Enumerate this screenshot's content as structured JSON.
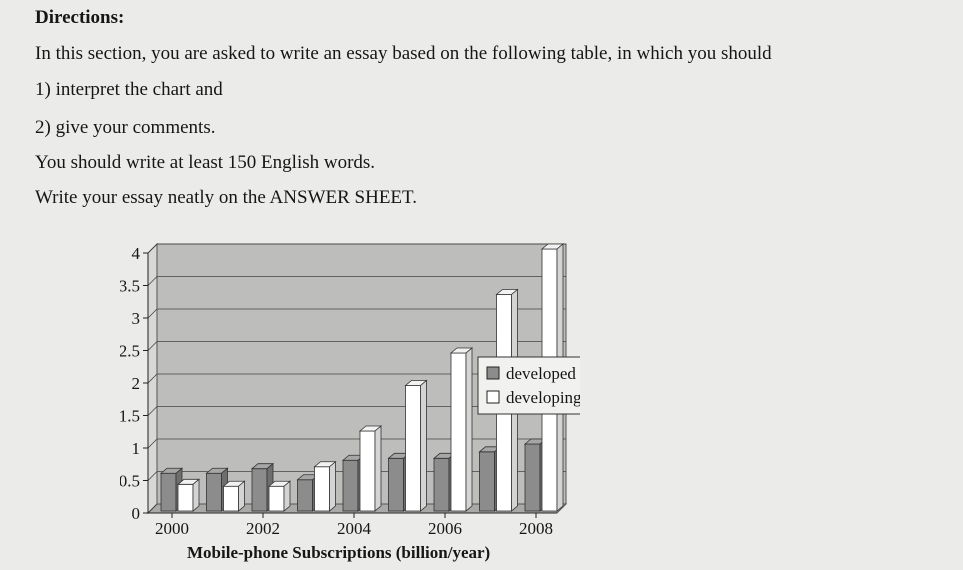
{
  "directions": {
    "heading": "Directions:",
    "line1": "In this section, you are asked to write an essay based on the following table, in which you should",
    "item1": "1) interpret the chart and",
    "item2": "2) give your comments.",
    "words": "You should write at least 150 English words.",
    "sheet": "Write your essay neatly on the ANSWER SHEET."
  },
  "chart_data": {
    "type": "bar",
    "title": "Mobile-phone Subscriptions (billion/year)",
    "categories": [
      "2000",
      "2001",
      "2002",
      "2003",
      "2004",
      "2005",
      "2006",
      "2007",
      "2008"
    ],
    "x_tick_labels": [
      "2000",
      "2002",
      "2004",
      "2006",
      "2008"
    ],
    "series": [
      {
        "name": "developed countries",
        "values": [
          0.55,
          0.55,
          0.62,
          0.45,
          0.75,
          0.78,
          0.78,
          0.88,
          1.0
        ]
      },
      {
        "name": "developing countries",
        "values": [
          0.38,
          0.35,
          0.35,
          0.65,
          1.2,
          1.9,
          2.4,
          3.3,
          4.0
        ]
      }
    ],
    "ylim": [
      0,
      4
    ],
    "yticks": [
      "0",
      "0.5",
      "1",
      "1.5",
      "2",
      "2.5",
      "3",
      "3.5",
      "4"
    ],
    "grid": true,
    "legend_position": "right",
    "colors": {
      "developed": "#8c8c8c",
      "developing": "#ffffff",
      "plot_bg": "#bdbdbb"
    }
  }
}
